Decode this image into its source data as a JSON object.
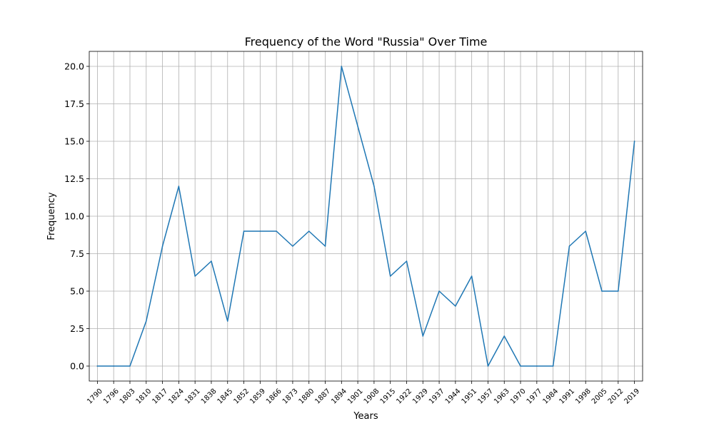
{
  "chart_data": {
    "type": "line",
    "title": "Frequency of the Word \"Russia\" Over Time",
    "xlabel": "Years",
    "ylabel": "Frequency",
    "x": [
      1790,
      1796,
      1803,
      1810,
      1817,
      1824,
      1831,
      1838,
      1845,
      1852,
      1859,
      1866,
      1873,
      1880,
      1887,
      1894,
      1901,
      1908,
      1915,
      1922,
      1929,
      1937,
      1944,
      1951,
      1957,
      1963,
      1970,
      1977,
      1984,
      1991,
      1998,
      2005,
      2012,
      2019
    ],
    "x_tick_labels": [
      "1790",
      "1796",
      "1803",
      "1810",
      "1817",
      "1824",
      "1831",
      "1838",
      "1845",
      "1852",
      "1859",
      "1866",
      "1873",
      "1880",
      "1887",
      "1894",
      "1901",
      "1908",
      "1915",
      "1922",
      "1929",
      "1937",
      "1944",
      "1951",
      "1957",
      "1963",
      "1970",
      "1977",
      "1984",
      "1991",
      "1998",
      "2005",
      "2012",
      "2019"
    ],
    "series": [
      {
        "values": [
          0,
          0,
          0,
          3,
          8,
          12,
          6,
          7,
          3,
          9,
          9,
          9,
          8,
          9,
          8,
          20,
          16,
          12,
          6,
          7,
          2,
          5,
          4,
          6,
          0,
          2,
          0,
          0,
          0,
          8,
          9,
          5,
          5,
          15
        ],
        "color": "#1f77b4"
      }
    ],
    "ylim": [
      -1,
      21
    ],
    "y_ticks": [
      0.0,
      2.5,
      5.0,
      7.5,
      10.0,
      12.5,
      15.0,
      17.5,
      20.0
    ],
    "y_tick_labels": [
      "0.0",
      "2.5",
      "5.0",
      "7.5",
      "10.0",
      "12.5",
      "15.0",
      "17.5",
      "20.0"
    ],
    "grid": true,
    "legend": "none"
  }
}
